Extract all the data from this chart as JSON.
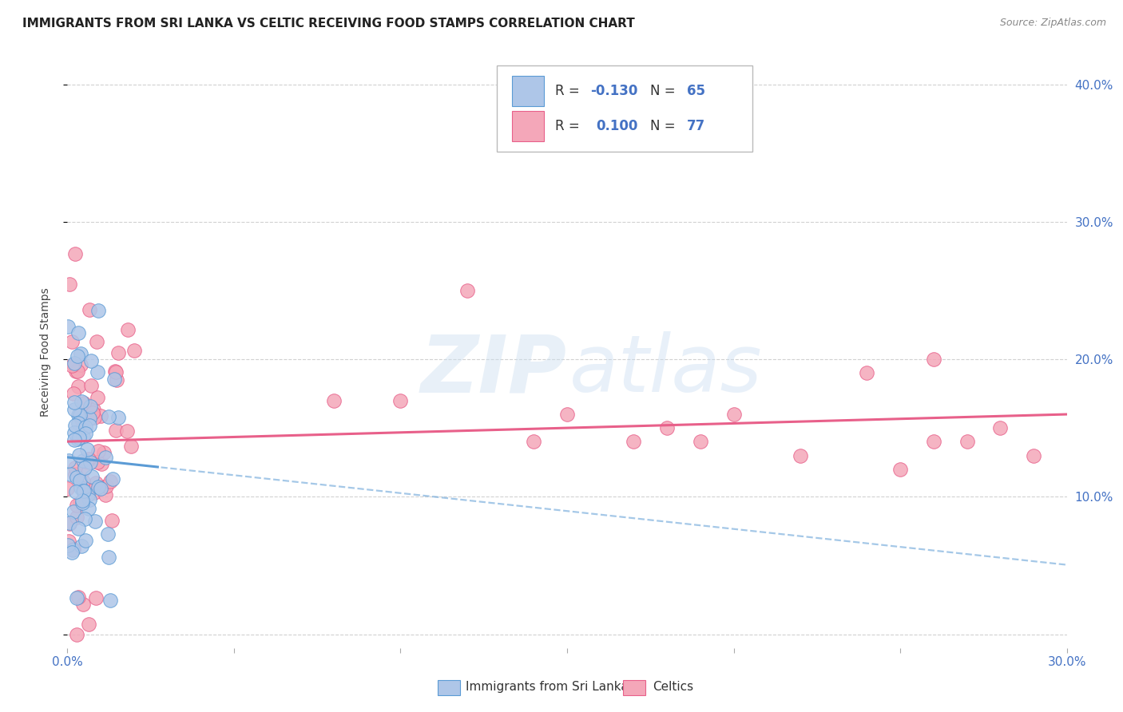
{
  "title": "IMMIGRANTS FROM SRI LANKA VS CELTIC RECEIVING FOOD STAMPS CORRELATION CHART",
  "source": "Source: ZipAtlas.com",
  "ylabel": "Receiving Food Stamps",
  "xlim": [
    0.0,
    0.3
  ],
  "ylim": [
    -0.01,
    0.42
  ],
  "watermark_zip": "ZIP",
  "watermark_atlas": "atlas",
  "series": [
    {
      "name": "Immigrants from Sri Lanka",
      "R": -0.13,
      "N": 65,
      "color": "#aec6e8",
      "line_color": "#5b9bd5",
      "edge_color": "#5b9bd5"
    },
    {
      "name": "Celtics",
      "R": 0.1,
      "N": 77,
      "color": "#f4a7b9",
      "line_color": "#e8608a",
      "edge_color": "#e8608a"
    }
  ],
  "title_fontsize": 11,
  "label_fontsize": 10,
  "tick_fontsize": 11,
  "source_fontsize": 9
}
